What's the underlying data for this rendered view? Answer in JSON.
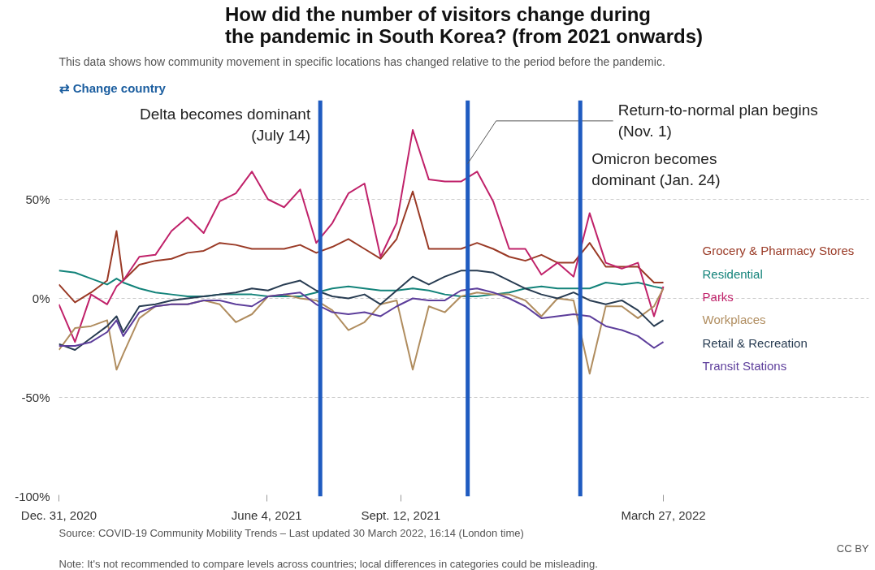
{
  "chart_data": {
    "type": "line",
    "title": "How did the number of visitors change during\nthe pandemic in South Korea? (from 2021 onwards)",
    "subtitle": "This data shows how community movement in specific locations has changed relative to the period before the pandemic.",
    "x": [
      "2020-12-31",
      "2021-01-12",
      "2021-01-24",
      "2021-02-05",
      "2021-02-12",
      "2021-02-17",
      "2021-03-01",
      "2021-03-13",
      "2021-03-25",
      "2021-04-06",
      "2021-04-18",
      "2021-04-30",
      "2021-05-12",
      "2021-05-24",
      "2021-06-05",
      "2021-06-17",
      "2021-06-29",
      "2021-07-11",
      "2021-07-23",
      "2021-08-04",
      "2021-08-16",
      "2021-08-28",
      "2021-09-09",
      "2021-09-21",
      "2021-10-03",
      "2021-10-15",
      "2021-10-27",
      "2021-11-08",
      "2021-11-20",
      "2021-12-02",
      "2021-12-14",
      "2021-12-26",
      "2022-01-07",
      "2022-01-19",
      "2022-01-31",
      "2022-02-12",
      "2022-02-24",
      "2022-03-08",
      "2022-03-20",
      "2022-03-27"
    ],
    "series": [
      {
        "name": "Grocery & Pharmacy Stores",
        "color": "#9a3a26",
        "values": [
          7,
          -2,
          3,
          9,
          34,
          9,
          17,
          19,
          20,
          23,
          24,
          28,
          27,
          25,
          25,
          25,
          27,
          23,
          26,
          30,
          25,
          20,
          30,
          54,
          25,
          25,
          25,
          28,
          25,
          21,
          19,
          22,
          18,
          18,
          28,
          16,
          16,
          16,
          8,
          8
        ]
      },
      {
        "name": "Residential",
        "color": "#13837a",
        "values": [
          14,
          13,
          10,
          7,
          10,
          8,
          5,
          3,
          2,
          1,
          1,
          2,
          2,
          2,
          1,
          1,
          1,
          3,
          5,
          6,
          5,
          4,
          4,
          5,
          4,
          2,
          1,
          1,
          2,
          3,
          5,
          6,
          5,
          5,
          5,
          8,
          7,
          8,
          6,
          5
        ]
      },
      {
        "name": "Parks",
        "color": "#c0226a",
        "values": [
          -3,
          -22,
          2,
          -3,
          6,
          9,
          21,
          22,
          34,
          41,
          33,
          49,
          53,
          64,
          50,
          46,
          55,
          28,
          38,
          53,
          58,
          21,
          38,
          85,
          60,
          59,
          59,
          64,
          49,
          25,
          25,
          12,
          18,
          11,
          43,
          18,
          15,
          18,
          -9,
          6
        ]
      },
      {
        "name": "Workplaces",
        "color": "#b08d5f",
        "values": [
          -26,
          -15,
          -14,
          -11,
          -36,
          -28,
          -10,
          -4,
          -3,
          -3,
          -1,
          -3,
          -12,
          -8,
          1,
          2,
          0,
          -1,
          -6,
          -16,
          -12,
          -3,
          -1,
          -36,
          -4,
          -7,
          1,
          3,
          2,
          2,
          -1,
          -9,
          0,
          -1,
          -38,
          -4,
          -4,
          -10,
          -4,
          5
        ]
      },
      {
        "name": "Retail & Recreation",
        "color": "#283c52",
        "values": [
          -23,
          -26,
          -20,
          -14,
          -9,
          -17,
          -4,
          -3,
          -1,
          0,
          1,
          2,
          3,
          5,
          4,
          7,
          9,
          4,
          1,
          0,
          2,
          -3,
          4,
          11,
          7,
          11,
          14,
          14,
          13,
          9,
          5,
          2,
          0,
          3,
          -1,
          -3,
          -1,
          -6,
          -14,
          -11
        ]
      },
      {
        "name": "Transit Stations",
        "color": "#5d3e9b",
        "values": [
          -24,
          -24,
          -22,
          -17,
          -11,
          -19,
          -7,
          -4,
          -3,
          -3,
          -1,
          -1,
          -3,
          -4,
          1,
          2,
          3,
          -3,
          -7,
          -8,
          -7,
          -9,
          -4,
          0,
          -1,
          -1,
          4,
          5,
          3,
          0,
          -4,
          -10,
          -9,
          -8,
          -9,
          -14,
          -16,
          -19,
          -25,
          -22
        ]
      }
    ],
    "xlim": [
      "2020-12-31",
      "2022-03-27"
    ],
    "xticks": [
      {
        "value": "2020-12-31",
        "label": "Dec. 31, 2020"
      },
      {
        "value": "2021-06-04",
        "label": "June 4, 2021"
      },
      {
        "value": "2021-09-12",
        "label": "Sept. 12, 2021"
      },
      {
        "value": "2022-03-27",
        "label": "March 27, 2022"
      }
    ],
    "ylim": [
      -100,
      100
    ],
    "yticks": [
      {
        "value": -100,
        "label": "-100%"
      },
      {
        "value": -50,
        "label": "-50%"
      },
      {
        "value": 0,
        "label": "0%"
      },
      {
        "value": 50,
        "label": "50%"
      }
    ],
    "grid": "y",
    "legend": "right",
    "ref_lines": [
      {
        "axis": "x",
        "value": "2021-07-14",
        "label": "Delta becomes dominant\n(July 14)",
        "color": "#1f5bc0"
      },
      {
        "axis": "x",
        "value": "2021-11-01",
        "label": "Return-to-normal plan begins\n(Nov. 1)",
        "color": "#1f5bc0"
      },
      {
        "axis": "x",
        "value": "2022-01-24",
        "label": "Omicron becomes\ndominant (Jan. 24)",
        "color": "#1f5bc0"
      }
    ],
    "annotations": [
      "⇄ Change country",
      "Source: COVID-19 Community Mobility Trends – Last updated 30 March 2022, 16:14 (London time)",
      "CC BY",
      "Note: It's not recommended to compare levels across countries; local differences in categories could be misleading."
    ]
  }
}
